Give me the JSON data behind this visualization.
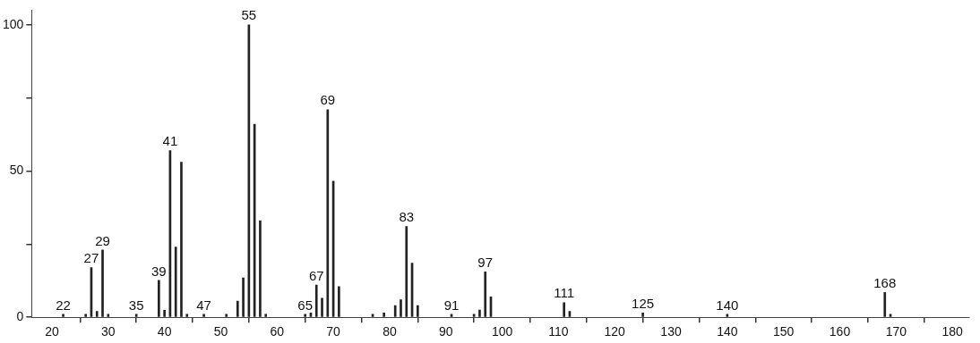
{
  "chart_data": {
    "type": "bar",
    "x": [
      22,
      26,
      27,
      28,
      29,
      30,
      35,
      39,
      40,
      41,
      42,
      43,
      44,
      47,
      51,
      53,
      54,
      55,
      56,
      57,
      58,
      65,
      66,
      67,
      68,
      69,
      70,
      71,
      77,
      79,
      81,
      82,
      83,
      84,
      85,
      91,
      95,
      96,
      97,
      98,
      111,
      112,
      125,
      140,
      168,
      169
    ],
    "values": [
      1,
      1,
      17,
      2,
      23,
      1,
      1,
      12.6,
      2.4,
      57,
      24,
      53,
      1,
      1,
      1,
      5.5,
      13.5,
      100,
      66,
      33,
      1,
      1,
      1.5,
      11,
      6.5,
      71,
      46.5,
      10.5,
      1,
      1.5,
      4,
      6,
      31,
      18.5,
      4,
      1,
      1,
      2.5,
      15.5,
      7,
      5,
      2,
      1.5,
      1,
      8.5,
      1
    ],
    "color": "#222222",
    "xlim": [
      16.4,
      183
    ],
    "xticks": [
      20,
      30,
      40,
      50,
      60,
      70,
      80,
      90,
      100,
      110,
      120,
      130,
      140,
      150,
      160,
      170,
      180
    ],
    "ylim": [
      0,
      105
    ],
    "yticks": [
      0,
      {
        "value": 25,
        "label": null
      },
      50,
      {
        "value": 75,
        "label": null
      },
      100
    ],
    "grid": false,
    "legend": false,
    "annotations": [
      {
        "text": "22",
        "x": 22,
        "y": 1
      },
      {
        "text": "27",
        "x": 27,
        "y": 17
      },
      {
        "text": "29",
        "x": 29,
        "y": 23
      },
      {
        "text": "35",
        "x": 35,
        "y": 1
      },
      {
        "text": "39",
        "x": 39,
        "y": 12.6
      },
      {
        "text": "41",
        "x": 41,
        "y": 57
      },
      {
        "text": "47",
        "x": 47,
        "y": 1
      },
      {
        "text": "55",
        "x": 55,
        "y": 100
      },
      {
        "text": "65",
        "x": 65,
        "y": 1
      },
      {
        "text": "67",
        "x": 67,
        "y": 11
      },
      {
        "text": "69",
        "x": 69,
        "y": 71
      },
      {
        "text": "83",
        "x": 83,
        "y": 31
      },
      {
        "text": "91",
        "x": 91,
        "y": 1
      },
      {
        "text": "97",
        "x": 97,
        "y": 15.5
      },
      {
        "text": "111",
        "x": 111,
        "y": 5
      },
      {
        "text": "125",
        "x": 125,
        "y": 1.5
      },
      {
        "text": "140",
        "x": 140,
        "y": 1
      },
      {
        "text": "168",
        "x": 168,
        "y": 8.5
      }
    ]
  }
}
